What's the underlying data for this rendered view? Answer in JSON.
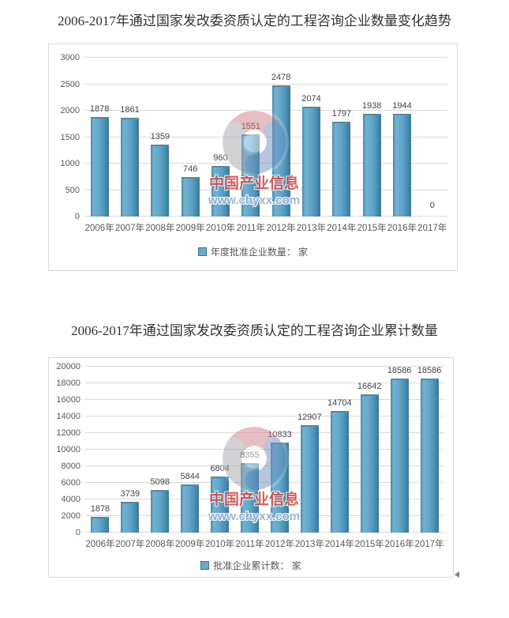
{
  "watermark": {
    "line1": "中国产业信息",
    "line2": "www.chyxx.com",
    "text_color": "#c84b4b",
    "url_color": "#92afd3"
  },
  "colors": {
    "bar_fill": "#5fa3c7",
    "bar_edge": "#3a7795",
    "legend_swatch": "#6fa8c8",
    "gridline": "#d9d9d9",
    "axis_text": "#595959",
    "title_text": "#333333"
  },
  "chart_data": [
    {
      "type": "bar",
      "title": "2006-2017年通过国家发改委资质认定的工程咨询企业数量变化趋势",
      "categories": [
        "2006年",
        "2007年",
        "2008年",
        "2009年",
        "2010年",
        "2011年",
        "2012年",
        "2013年",
        "2014年",
        "2015年",
        "2016年",
        "2017年"
      ],
      "values": [
        1878,
        1861,
        1359,
        746,
        960,
        1551,
        2478,
        2074,
        1797,
        1938,
        1944,
        0
      ],
      "legend": "年度批准企业数量： 家",
      "ylim": [
        0,
        3000
      ],
      "ytick_step": 500,
      "yticks": [
        0,
        500,
        1000,
        1500,
        2000,
        2500,
        3000
      ],
      "grid": true,
      "legend_position": "bottom",
      "data_labels": true
    },
    {
      "type": "bar",
      "title": "2006-2017年通过国家发改委资质认定的工程咨询企业累计数量",
      "categories": [
        "2006年",
        "2007年",
        "2008年",
        "2009年",
        "2010年",
        "2011年",
        "2012年",
        "2013年",
        "2014年",
        "2015年",
        "2016年",
        "2017年"
      ],
      "values": [
        1878,
        3739,
        5098,
        5844,
        6804,
        8355,
        10833,
        12907,
        14704,
        16642,
        18586,
        18586
      ],
      "legend": "批准企业累计数： 家",
      "ylim": [
        0,
        20000
      ],
      "ytick_step": 2000,
      "yticks": [
        0,
        2000,
        4000,
        6000,
        8000,
        10000,
        12000,
        14000,
        16000,
        18000,
        20000
      ],
      "grid": true,
      "legend_position": "bottom",
      "data_labels": true
    }
  ]
}
